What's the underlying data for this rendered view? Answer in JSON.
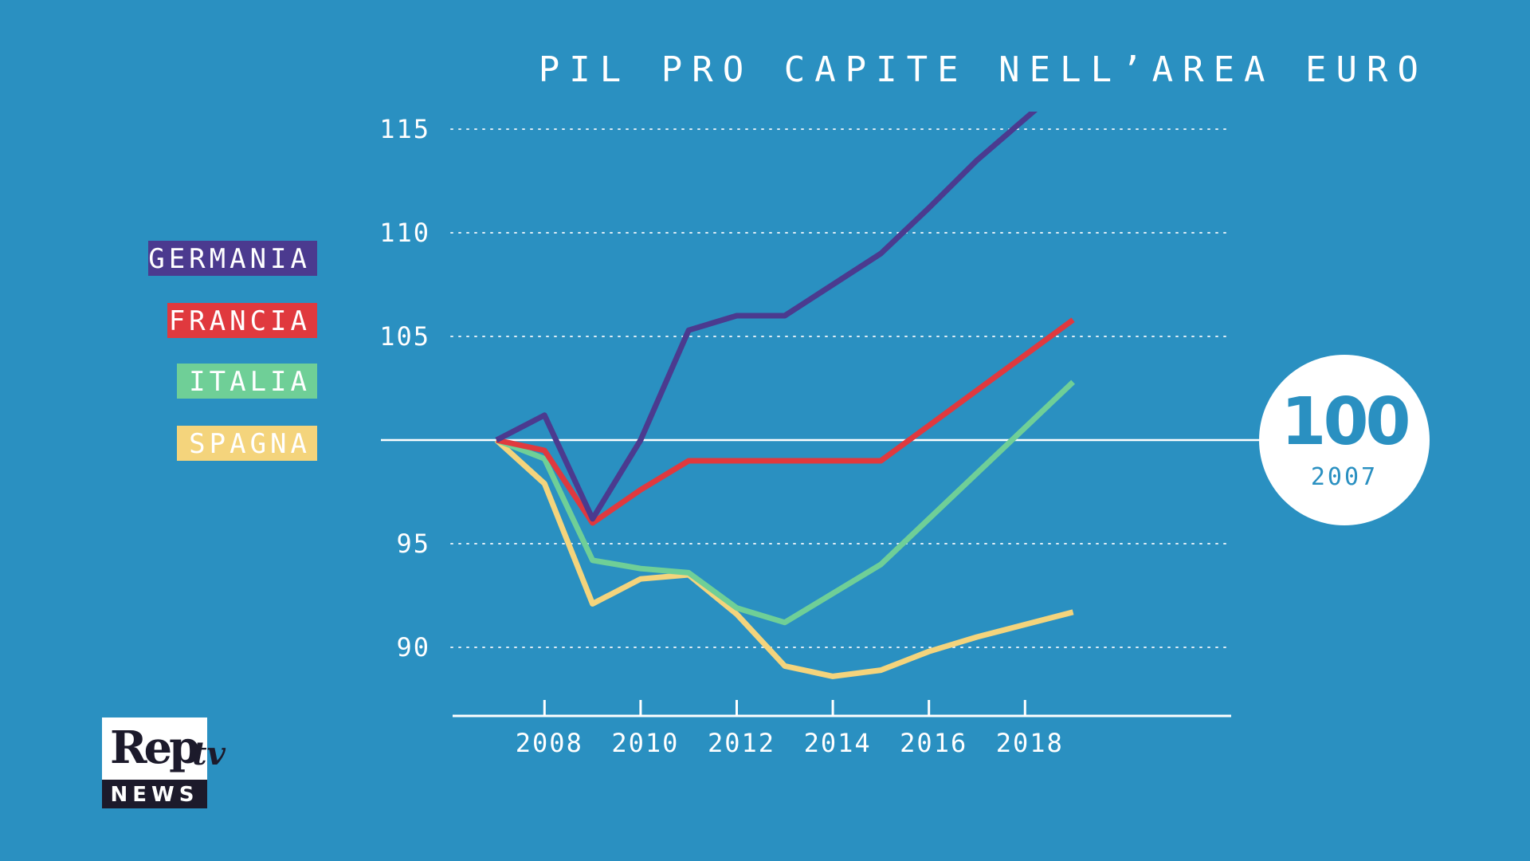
{
  "chart_data": {
    "type": "line",
    "title": "PIL PRO CAPITE NELL’AREA EURO",
    "x": [
      2007,
      2008,
      2009,
      2010,
      2011,
      2012,
      2013,
      2014,
      2015,
      2016,
      2017,
      2018,
      2019
    ],
    "x_ticks": [
      "2008",
      "2010",
      "2012",
      "2014",
      "2016",
      "2018"
    ],
    "y_ticks": [
      "90",
      "95",
      "105",
      "110",
      "115"
    ],
    "ylim": [
      87.5,
      116
    ],
    "baseline": 100,
    "grid": true,
    "legend_position": "left",
    "series": [
      {
        "name": "GERMANIA",
        "color": "#4b3a8f",
        "values": [
          100,
          101.2,
          96.2,
          100.0,
          105.3,
          106.0,
          106.0,
          107.5,
          109.0,
          111.2,
          113.5,
          115.5,
          117.5
        ]
      },
      {
        "name": "FRANCIA",
        "color": "#e0393e",
        "values": [
          100,
          99.5,
          96.0,
          97.6,
          99.0,
          99.0,
          99.0,
          99.0,
          99.0,
          100.7,
          102.4,
          104.1,
          105.8
        ]
      },
      {
        "name": "ITALIA",
        "color": "#6fcf97",
        "values": [
          100,
          99.1,
          94.2,
          93.8,
          93.6,
          91.9,
          91.2,
          92.6,
          94.0,
          96.2,
          98.4,
          100.6,
          102.8
        ]
      },
      {
        "name": "SPAGNA",
        "color": "#f4d47c",
        "values": [
          100,
          97.9,
          92.1,
          93.3,
          93.5,
          91.6,
          89.1,
          88.6,
          88.9,
          89.8,
          90.5,
          91.1,
          91.7
        ]
      }
    ]
  },
  "badge": {
    "value": "100",
    "year": "2007"
  },
  "logo": {
    "brand": "Rep",
    "suffix": "tv",
    "tagline": "NEWS"
  }
}
